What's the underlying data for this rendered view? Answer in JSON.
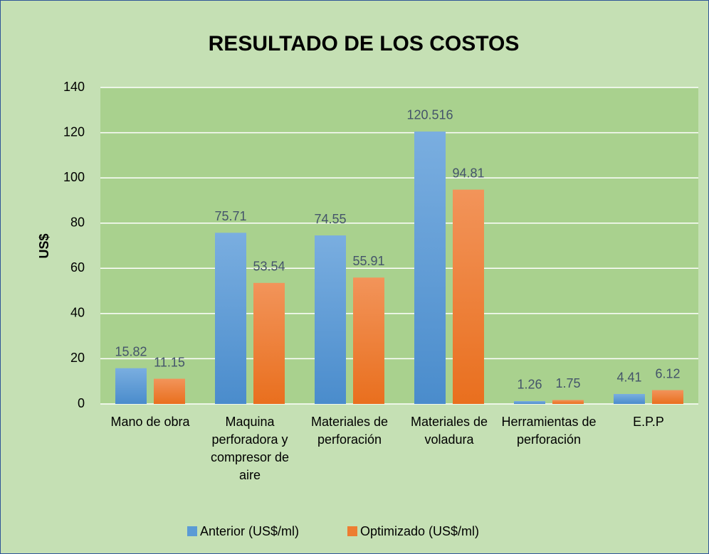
{
  "chart_data": {
    "type": "bar",
    "title": "RESULTADO DE LOS COSTOS",
    "y_label": "US$",
    "categories": [
      "Mano de obra",
      "Maquina perforadora y compresor de aire",
      "Materiales de perforación",
      "Materiales de voladura",
      "Herramientas de perforación",
      "E.P.P"
    ],
    "series": [
      {
        "name": "Anterior (US$/ml)",
        "color": "#5b9bd5",
        "values": [
          15.82,
          75.71,
          74.55,
          120.516,
          1.26,
          4.41
        ]
      },
      {
        "name": "Optimizado (US$/ml)",
        "color": "#ed7d31",
        "values": [
          11.15,
          53.54,
          55.91,
          94.81,
          1.75,
          6.12
        ]
      }
    ],
    "ylim": [
      0,
      140
    ],
    "yticks": [
      0,
      20,
      40,
      60,
      80,
      100,
      120,
      140
    ],
    "grid": true,
    "legend": "bottom"
  }
}
